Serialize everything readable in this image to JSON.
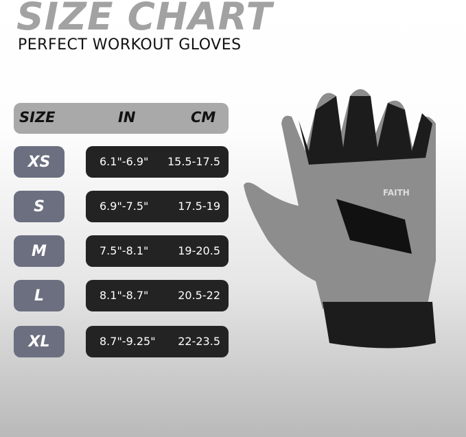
{
  "title": "SIZE CHART",
  "subtitle": "PERFECT WORKOUT GLOVES",
  "header": {
    "size": "SIZE",
    "in": "IN",
    "cm": "CM"
  },
  "rows": [
    {
      "size": "XS",
      "in": "6.1\"-6.9\"",
      "cm": "15.5-17.5"
    },
    {
      "size": "S",
      "in": "6.9\"-7.5\"",
      "cm": "17.5-19"
    },
    {
      "size": "M",
      "in": "7.5\"-8.1\"",
      "cm": "19-20.5"
    },
    {
      "size": "L",
      "in": "8.1\"-8.7\"",
      "cm": "20.5-22"
    },
    {
      "size": "XL",
      "in": "8.7\"-9.25\"",
      "cm": "22-23.5"
    }
  ],
  "glove": {
    "brand": "FAITH"
  },
  "colors": {
    "title": "#a2a2a2",
    "size_pill": "#6b6f80",
    "value_pill": "#232323",
    "header_pill": "#a9a9a9"
  }
}
